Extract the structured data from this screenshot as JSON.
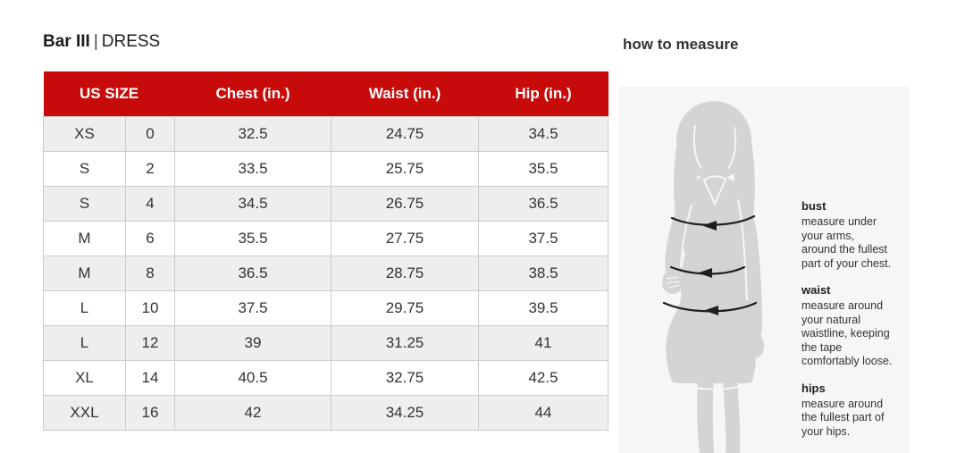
{
  "page": {
    "brand": "Bar III",
    "separator": "|",
    "category": "DRESS"
  },
  "size_chart": {
    "columns": [
      "US SIZE",
      "Chest (in.)",
      "Waist (in.)",
      "Hip (in.)"
    ],
    "rows": [
      {
        "letter": "XS",
        "number": "0",
        "chest": "32.5",
        "waist": "24.75",
        "hip": "34.5"
      },
      {
        "letter": "S",
        "number": "2",
        "chest": "33.5",
        "waist": "25.75",
        "hip": "35.5"
      },
      {
        "letter": "S",
        "number": "4",
        "chest": "34.5",
        "waist": "26.75",
        "hip": "36.5"
      },
      {
        "letter": "M",
        "number": "6",
        "chest": "35.5",
        "waist": "27.75",
        "hip": "37.5"
      },
      {
        "letter": "M",
        "number": "8",
        "chest": "36.5",
        "waist": "28.75",
        "hip": "38.5"
      },
      {
        "letter": "L",
        "number": "10",
        "chest": "37.5",
        "waist": "29.75",
        "hip": "39.5"
      },
      {
        "letter": "L",
        "number": "12",
        "chest": "39",
        "waist": "31.25",
        "hip": "41"
      },
      {
        "letter": "XL",
        "number": "14",
        "chest": "40.5",
        "waist": "32.75",
        "hip": "42.5"
      },
      {
        "letter": "XXL",
        "number": "16",
        "chest": "42",
        "waist": "34.25",
        "hip": "44"
      }
    ]
  },
  "how_to_measure": {
    "title": "how to measure",
    "figure": "woman-silhouette-with-measurement-arrows",
    "sections": [
      {
        "label": "bust",
        "text": "measure under\nyour arms,\naround the fullest\npart of your chest."
      },
      {
        "label": "waist",
        "text": "measure around\nyour natural\nwaistline, keeping\nthe tape\ncomfortably loose."
      },
      {
        "label": "hips",
        "text": "measure around\nthe fullest part of\nyour hips."
      }
    ]
  },
  "colors": {
    "header_red": "#c70b0b",
    "row_alt_gray": "#eeeeee",
    "panel_bg": "#f6f6f7",
    "figure_gray": "#d3d4d6"
  }
}
